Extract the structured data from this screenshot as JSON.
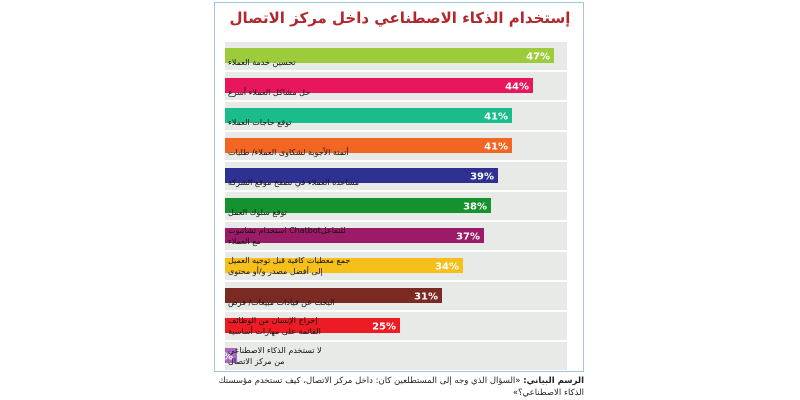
{
  "chart_data": {
    "type": "bar",
    "orientation": "horizontal",
    "title": "إستخدام الذكاء الاصطناعي داخل مركز الاتصال",
    "categories": [
      "تحسين خدمة العملاء",
      "حل مشاكل العملاء أسرع",
      "توقع حاجات العملاء",
      "أتمتة الأجوبة لشكاوى العملاء/ طلبات",
      "مساعدة العملاء في تصفح موقع الشركة",
      "توقع سلوك العمل",
      "استخدام تشاتبوت Chatbotللتفاعل مع العملاء",
      "جمع معطيات كافية قبل توجيه العميل إلى أفضل مصدر و/أو محتوى",
      "البحث عن قيادات مبيعات/ فرص",
      "إخراج الإنسان من الوظائف القائمة على مهارات أساسية",
      "لا تستخدم الذكاء الاصطناعي من مركز الاتصال"
    ],
    "values": [
      47,
      44,
      41,
      41,
      39,
      38,
      37,
      34,
      31,
      25,
      1
    ],
    "value_labels": [
      "47%",
      "44%",
      "41%",
      "41%",
      "39%",
      "38%",
      "37%",
      "34%",
      "31%",
      "25%",
      "1%"
    ],
    "colors": [
      "#9ccb3b",
      "#e8175d",
      "#1abc8c",
      "#f26522",
      "#2e3192",
      "#13922d",
      "#9b1b69",
      "#f7bf1a",
      "#7a2a22",
      "#ed1c24",
      "#a769c4"
    ],
    "xlim": [
      0,
      100
    ],
    "grid": false,
    "legend": "none"
  },
  "caption": {
    "label": "الرسم البياني:",
    "text": "«السؤال الذي وجه إلى المستطلعين كان: داخل مركز الاتصال، كيف تستخدم مؤسستك الذكاء الاصطناعي؟»"
  }
}
